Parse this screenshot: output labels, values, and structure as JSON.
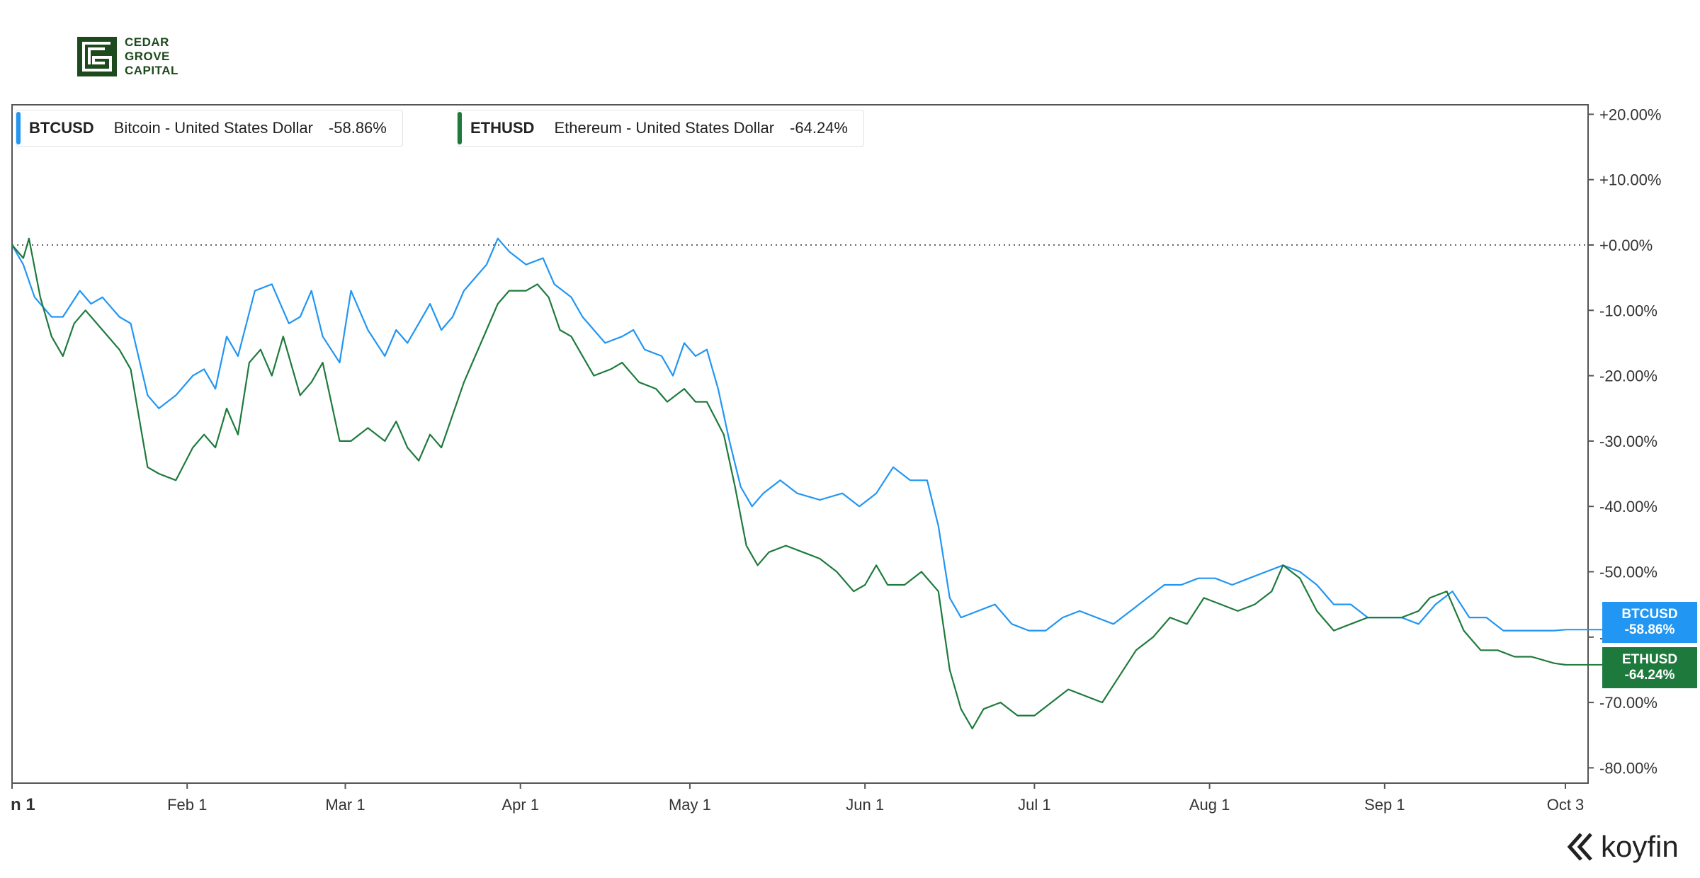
{
  "logo": {
    "line1": "CEDAR",
    "line2": "GROVE",
    "line3": "CAPITAL",
    "color": "#1d4a1d"
  },
  "brand": {
    "name": "koyfin",
    "icon": "koyfin-logo-icon"
  },
  "legend": [
    {
      "symbol": "BTCUSD",
      "name": "Bitcoin - United States Dollar",
      "change": "-58.86%",
      "color": "#2196f3"
    },
    {
      "symbol": "ETHUSD",
      "name": "Ethereum - United States Dollar",
      "change": "-64.24%",
      "color": "#1e7a3c"
    }
  ],
  "tags": [
    {
      "symbol": "BTCUSD",
      "change": "-58.86%",
      "color": "#2196f3"
    },
    {
      "symbol": "ETHUSD",
      "change": "-64.24%",
      "color": "#1e7a3c"
    }
  ],
  "chart_data": {
    "type": "line",
    "title": "",
    "xlabel": "",
    "ylabel": "",
    "x_ticks": [
      "n 1",
      "Feb 1",
      "Mar 1",
      "Apr 1",
      "May 1",
      "Jun 1",
      "Jul 1",
      "Aug 1",
      "Sep 1",
      "Oct 3"
    ],
    "y_ticks": [
      "+20.00%",
      "+10.00%",
      "+0.00%",
      "-10.00%",
      "-20.00%",
      "-30.00%",
      "-40.00%",
      "-50.00%",
      "-60.00%",
      "-70.00%",
      "-80.00%"
    ],
    "ylim": [
      -82,
      22
    ],
    "zero_line": "dotted",
    "grid": false,
    "series": [
      {
        "name": "BTCUSD",
        "color": "#2196f3",
        "points": [
          [
            "Jan 1",
            0
          ],
          [
            "Jan 3",
            -3
          ],
          [
            "Jan 5",
            -8
          ],
          [
            "Jan 8",
            -11
          ],
          [
            "Jan 10",
            -11
          ],
          [
            "Jan 13",
            -7
          ],
          [
            "Jan 15",
            -9
          ],
          [
            "Jan 17",
            -8
          ],
          [
            "Jan 20",
            -11
          ],
          [
            "Jan 22",
            -12
          ],
          [
            "Jan 25",
            -23
          ],
          [
            "Jan 27",
            -25
          ],
          [
            "Jan 30",
            -23
          ],
          [
            "Feb 2",
            -20
          ],
          [
            "Feb 4",
            -19
          ],
          [
            "Feb 6",
            -22
          ],
          [
            "Feb 8",
            -14
          ],
          [
            "Feb 10",
            -17
          ],
          [
            "Feb 13",
            -7
          ],
          [
            "Feb 16",
            -6
          ],
          [
            "Feb 19",
            -12
          ],
          [
            "Feb 21",
            -11
          ],
          [
            "Feb 23",
            -7
          ],
          [
            "Feb 25",
            -14
          ],
          [
            "Feb 28",
            -18
          ],
          [
            "Mar 2",
            -7
          ],
          [
            "Mar 5",
            -13
          ],
          [
            "Mar 8",
            -17
          ],
          [
            "Mar 10",
            -13
          ],
          [
            "Mar 12",
            -15
          ],
          [
            "Mar 14",
            -12
          ],
          [
            "Mar 16",
            -9
          ],
          [
            "Mar 18",
            -13
          ],
          [
            "Mar 20",
            -11
          ],
          [
            "Mar 22",
            -7
          ],
          [
            "Mar 24",
            -5
          ],
          [
            "Mar 26",
            -3
          ],
          [
            "Mar 28",
            1
          ],
          [
            "Mar 30",
            -1
          ],
          [
            "Apr 2",
            -3
          ],
          [
            "Apr 5",
            -2
          ],
          [
            "Apr 7",
            -6
          ],
          [
            "Apr 10",
            -8
          ],
          [
            "Apr 12",
            -11
          ],
          [
            "Apr 14",
            -13
          ],
          [
            "Apr 16",
            -15
          ],
          [
            "Apr 19",
            -14
          ],
          [
            "Apr 21",
            -13
          ],
          [
            "Apr 23",
            -16
          ],
          [
            "Apr 26",
            -17
          ],
          [
            "Apr 28",
            -20
          ],
          [
            "Apr 30",
            -15
          ],
          [
            "May 2",
            -17
          ],
          [
            "May 4",
            -16
          ],
          [
            "May 6",
            -22
          ],
          [
            "May 8",
            -30
          ],
          [
            "May 10",
            -37
          ],
          [
            "May 12",
            -40
          ],
          [
            "May 14",
            -38
          ],
          [
            "May 17",
            -36
          ],
          [
            "May 20",
            -38
          ],
          [
            "May 24",
            -39
          ],
          [
            "May 28",
            -38
          ],
          [
            "May 31",
            -40
          ],
          [
            "Jun 3",
            -38
          ],
          [
            "Jun 6",
            -34
          ],
          [
            "Jun 9",
            -36
          ],
          [
            "Jun 12",
            -36
          ],
          [
            "Jun 14",
            -43
          ],
          [
            "Jun 16",
            -54
          ],
          [
            "Jun 18",
            -57
          ],
          [
            "Jun 21",
            -56
          ],
          [
            "Jun 24",
            -55
          ],
          [
            "Jun 27",
            -58
          ],
          [
            "Jun 30",
            -59
          ],
          [
            "Jul 3",
            -59
          ],
          [
            "Jul 6",
            -57
          ],
          [
            "Jul 9",
            -56
          ],
          [
            "Jul 12",
            -57
          ],
          [
            "Jul 15",
            -58
          ],
          [
            "Jul 18",
            -56
          ],
          [
            "Jul 21",
            -54
          ],
          [
            "Jul 24",
            -52
          ],
          [
            "Jul 27",
            -52
          ],
          [
            "Jul 30",
            -51
          ],
          [
            "Aug 2",
            -51
          ],
          [
            "Aug 5",
            -52
          ],
          [
            "Aug 8",
            -51
          ],
          [
            "Aug 11",
            -50
          ],
          [
            "Aug 14",
            -49
          ],
          [
            "Aug 17",
            -50
          ],
          [
            "Aug 20",
            -52
          ],
          [
            "Aug 23",
            -55
          ],
          [
            "Aug 26",
            -55
          ],
          [
            "Aug 29",
            -57
          ],
          [
            "Sep 1",
            -57
          ],
          [
            "Sep 4",
            -57
          ],
          [
            "Sep 7",
            -58
          ],
          [
            "Sep 10",
            -55
          ],
          [
            "Sep 13",
            -53
          ],
          [
            "Sep 16",
            -57
          ],
          [
            "Sep 19",
            -57
          ],
          [
            "Sep 22",
            -59
          ],
          [
            "Sep 25",
            -59
          ],
          [
            "Sep 28",
            -59
          ],
          [
            "Oct 1",
            -59
          ],
          [
            "Oct 3",
            -58.86
          ]
        ]
      },
      {
        "name": "ETHUSD",
        "color": "#1e7a3c",
        "points": [
          [
            "Jan 1",
            0
          ],
          [
            "Jan 3",
            -2
          ],
          [
            "Jan 4",
            1
          ],
          [
            "Jan 6",
            -8
          ],
          [
            "Jan 8",
            -14
          ],
          [
            "Jan 10",
            -17
          ],
          [
            "Jan 12",
            -12
          ],
          [
            "Jan 14",
            -10
          ],
          [
            "Jan 17",
            -13
          ],
          [
            "Jan 20",
            -16
          ],
          [
            "Jan 22",
            -19
          ],
          [
            "Jan 25",
            -34
          ],
          [
            "Jan 27",
            -35
          ],
          [
            "Jan 30",
            -36
          ],
          [
            "Feb 2",
            -31
          ],
          [
            "Feb 4",
            -29
          ],
          [
            "Feb 6",
            -31
          ],
          [
            "Feb 8",
            -25
          ],
          [
            "Feb 10",
            -29
          ],
          [
            "Feb 12",
            -18
          ],
          [
            "Feb 14",
            -16
          ],
          [
            "Feb 16",
            -20
          ],
          [
            "Feb 18",
            -14
          ],
          [
            "Feb 21",
            -23
          ],
          [
            "Feb 23",
            -21
          ],
          [
            "Feb 25",
            -18
          ],
          [
            "Feb 28",
            -30
          ],
          [
            "Mar 2",
            -30
          ],
          [
            "Mar 5",
            -28
          ],
          [
            "Mar 8",
            -30
          ],
          [
            "Mar 10",
            -27
          ],
          [
            "Mar 12",
            -31
          ],
          [
            "Mar 14",
            -33
          ],
          [
            "Mar 16",
            -29
          ],
          [
            "Mar 18",
            -31
          ],
          [
            "Mar 20",
            -26
          ],
          [
            "Mar 22",
            -21
          ],
          [
            "Mar 24",
            -17
          ],
          [
            "Mar 26",
            -13
          ],
          [
            "Mar 28",
            -9
          ],
          [
            "Mar 30",
            -7
          ],
          [
            "Apr 2",
            -7
          ],
          [
            "Apr 4",
            -6
          ],
          [
            "Apr 6",
            -8
          ],
          [
            "Apr 8",
            -13
          ],
          [
            "Apr 10",
            -14
          ],
          [
            "Apr 12",
            -17
          ],
          [
            "Apr 14",
            -20
          ],
          [
            "Apr 17",
            -19
          ],
          [
            "Apr 19",
            -18
          ],
          [
            "Apr 22",
            -21
          ],
          [
            "Apr 25",
            -22
          ],
          [
            "Apr 27",
            -24
          ],
          [
            "Apr 30",
            -22
          ],
          [
            "May 2",
            -24
          ],
          [
            "May 4",
            -24
          ],
          [
            "May 7",
            -29
          ],
          [
            "May 9",
            -37
          ],
          [
            "May 11",
            -46
          ],
          [
            "May 13",
            -49
          ],
          [
            "May 15",
            -47
          ],
          [
            "May 18",
            -46
          ],
          [
            "May 21",
            -47
          ],
          [
            "May 24",
            -48
          ],
          [
            "May 27",
            -50
          ],
          [
            "May 30",
            -53
          ],
          [
            "Jun 1",
            -52
          ],
          [
            "Jun 3",
            -49
          ],
          [
            "Jun 5",
            -52
          ],
          [
            "Jun 8",
            -52
          ],
          [
            "Jun 11",
            -50
          ],
          [
            "Jun 14",
            -53
          ],
          [
            "Jun 16",
            -65
          ],
          [
            "Jun 18",
            -71
          ],
          [
            "Jun 20",
            -74
          ],
          [
            "Jun 22",
            -71
          ],
          [
            "Jun 25",
            -70
          ],
          [
            "Jun 28",
            -72
          ],
          [
            "Jul 1",
            -72
          ],
          [
            "Jul 4",
            -70
          ],
          [
            "Jul 7",
            -68
          ],
          [
            "Jul 10",
            -69
          ],
          [
            "Jul 13",
            -70
          ],
          [
            "Jul 16",
            -66
          ],
          [
            "Jul 19",
            -62
          ],
          [
            "Jul 22",
            -60
          ],
          [
            "Jul 25",
            -57
          ],
          [
            "Jul 28",
            -58
          ],
          [
            "Jul 31",
            -54
          ],
          [
            "Aug 3",
            -55
          ],
          [
            "Aug 6",
            -56
          ],
          [
            "Aug 9",
            -55
          ],
          [
            "Aug 12",
            -53
          ],
          [
            "Aug 14",
            -49
          ],
          [
            "Aug 17",
            -51
          ],
          [
            "Aug 20",
            -56
          ],
          [
            "Aug 23",
            -59
          ],
          [
            "Aug 26",
            -58
          ],
          [
            "Aug 29",
            -57
          ],
          [
            "Sep 1",
            -57
          ],
          [
            "Sep 4",
            -57
          ],
          [
            "Sep 7",
            -56
          ],
          [
            "Sep 9",
            -54
          ],
          [
            "Sep 12",
            -53
          ],
          [
            "Sep 15",
            -59
          ],
          [
            "Sep 18",
            -62
          ],
          [
            "Sep 21",
            -62
          ],
          [
            "Sep 24",
            -63
          ],
          [
            "Sep 27",
            -63
          ],
          [
            "Oct 1",
            -64
          ],
          [
            "Oct 3",
            -64.24
          ]
        ]
      }
    ]
  }
}
